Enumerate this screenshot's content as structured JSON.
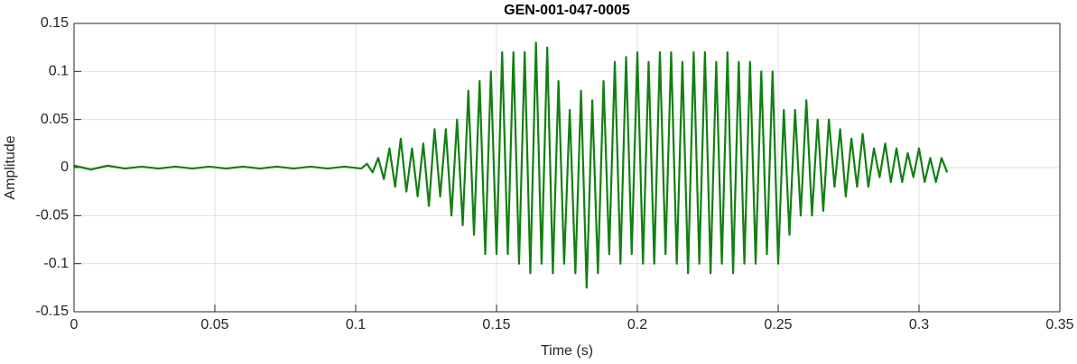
{
  "chart_data": {
    "type": "line",
    "title": "GEN-001-047-0005",
    "x_label": "Time (s)",
    "y_label": "Amplitude",
    "xlim": [
      0,
      0.35
    ],
    "ylim": [
      -0.15,
      0.15
    ],
    "xticks": [
      0,
      0.05,
      0.1,
      0.15,
      0.2,
      0.25,
      0.3,
      0.35
    ],
    "yticks": [
      -0.15,
      -0.1,
      -0.05,
      0,
      0.05,
      0.1,
      0.15
    ],
    "grid": true,
    "x": [
      0,
      0.006,
      0.012,
      0.018,
      0.024,
      0.03,
      0.036,
      0.042,
      0.048,
      0.054,
      0.06,
      0.066,
      0.072,
      0.078,
      0.084,
      0.09,
      0.096,
      0.102,
      0.104,
      0.106,
      0.108,
      0.11,
      0.112,
      0.114,
      0.116,
      0.118,
      0.12,
      0.122,
      0.124,
      0.126,
      0.128,
      0.13,
      0.132,
      0.134,
      0.136,
      0.138,
      0.14,
      0.142,
      0.144,
      0.146,
      0.148,
      0.15,
      0.152,
      0.154,
      0.156,
      0.158,
      0.16,
      0.162,
      0.164,
      0.166,
      0.168,
      0.17,
      0.172,
      0.174,
      0.176,
      0.178,
      0.18,
      0.182,
      0.184,
      0.186,
      0.188,
      0.19,
      0.192,
      0.194,
      0.196,
      0.198,
      0.2,
      0.202,
      0.204,
      0.206,
      0.208,
      0.21,
      0.212,
      0.214,
      0.216,
      0.218,
      0.22,
      0.222,
      0.224,
      0.226,
      0.228,
      0.23,
      0.232,
      0.234,
      0.236,
      0.238,
      0.24,
      0.242,
      0.244,
      0.246,
      0.248,
      0.25,
      0.252,
      0.254,
      0.256,
      0.258,
      0.26,
      0.262,
      0.264,
      0.266,
      0.268,
      0.27,
      0.272,
      0.274,
      0.276,
      0.278,
      0.28,
      0.282,
      0.284,
      0.286,
      0.288,
      0.29,
      0.292,
      0.294,
      0.296,
      0.298,
      0.3,
      0.302,
      0.304,
      0.306,
      0.308,
      0.31
    ],
    "series": [
      {
        "name": "Amplitude",
        "color": "#128012",
        "values": [
          0.002,
          -0.002,
          0.002,
          -0.001,
          0.001,
          -0.001,
          0.001,
          -0.001,
          0.001,
          -0.001,
          0.001,
          -0.001,
          0.001,
          -0.001,
          0.001,
          -0.001,
          0.001,
          -0.001,
          0.004,
          -0.005,
          0.01,
          -0.012,
          0.02,
          -0.02,
          0.03,
          -0.025,
          0.02,
          -0.03,
          0.025,
          -0.04,
          0.04,
          -0.03,
          0.04,
          -0.05,
          0.05,
          -0.06,
          0.08,
          -0.07,
          0.09,
          -0.09,
          0.1,
          -0.09,
          0.12,
          -0.09,
          0.12,
          -0.1,
          0.12,
          -0.11,
          0.13,
          -0.1,
          0.125,
          -0.11,
          0.09,
          -0.1,
          0.06,
          -0.11,
          0.08,
          -0.125,
          0.07,
          -0.11,
          0.09,
          -0.09,
          0.11,
          -0.1,
          0.115,
          -0.09,
          0.12,
          -0.1,
          0.11,
          -0.1,
          0.12,
          -0.09,
          0.12,
          -0.1,
          0.11,
          -0.11,
          0.12,
          -0.1,
          0.12,
          -0.11,
          0.11,
          -0.1,
          0.12,
          -0.11,
          0.11,
          -0.1,
          0.11,
          -0.1,
          0.1,
          -0.09,
          0.1,
          -0.1,
          0.06,
          -0.07,
          0.06,
          -0.05,
          0.07,
          -0.05,
          0.05,
          -0.045,
          0.05,
          -0.02,
          0.04,
          -0.03,
          0.03,
          -0.02,
          0.035,
          -0.02,
          0.02,
          -0.01,
          0.025,
          -0.015,
          0.02,
          -0.015,
          0.015,
          -0.01,
          0.02,
          -0.015,
          0.01,
          -0.015,
          0.01,
          -0.005
        ]
      }
    ]
  }
}
